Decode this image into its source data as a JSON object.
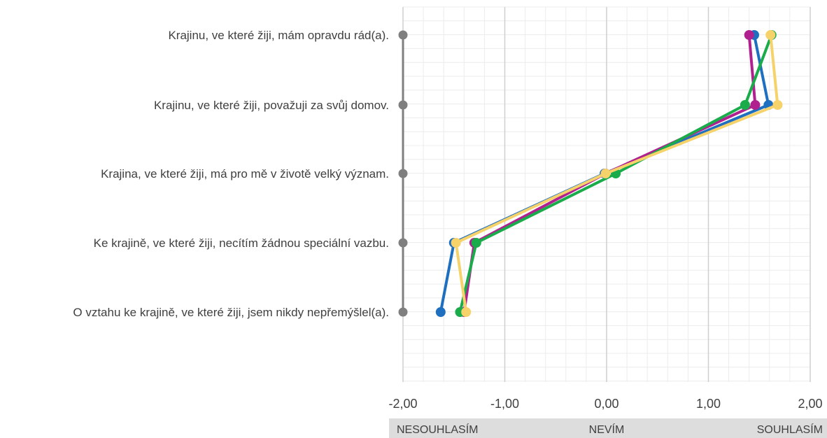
{
  "chart_data": {
    "type": "line",
    "orientation": "horizontal",
    "categories": [
      "Krajinu, ve které žiji, mám opravdu rád(a).",
      "Krajinu, ve které žiji, považuji za svůj domov.",
      "Krajina, ve které žiji, má pro mě v životě velký význam.",
      "Ke krajině, ve které žiji, necítím žádnou speciální vazbu.",
      "O vztahu ke krajině, ve které žiji, jsem nikdy nepřemýšlel(a)."
    ],
    "xlim": [
      -2,
      2
    ],
    "x_ticks": [
      "-2,00",
      "-1,00",
      "0,00",
      "1,00",
      "2,00"
    ],
    "scale_labels": [
      "NESOUHLASÍM",
      "NEVÍM",
      "SOUHLASÍM"
    ],
    "grid": true,
    "series": [
      {
        "color": "#1f6fc0",
        "values": [
          1.45,
          1.59,
          -0.02,
          -1.5,
          -1.63
        ]
      },
      {
        "color": "#b0218f",
        "values": [
          1.4,
          1.46,
          -0.01,
          -1.3,
          -1.4
        ]
      },
      {
        "color": "#1aab4a",
        "values": [
          1.62,
          1.36,
          0.09,
          -1.28,
          -1.44
        ]
      },
      {
        "color": "#f6d36a",
        "values": [
          1.61,
          1.68,
          -0.01,
          -1.48,
          -1.38
        ]
      }
    ],
    "marker_color": "#7f7f7f"
  }
}
